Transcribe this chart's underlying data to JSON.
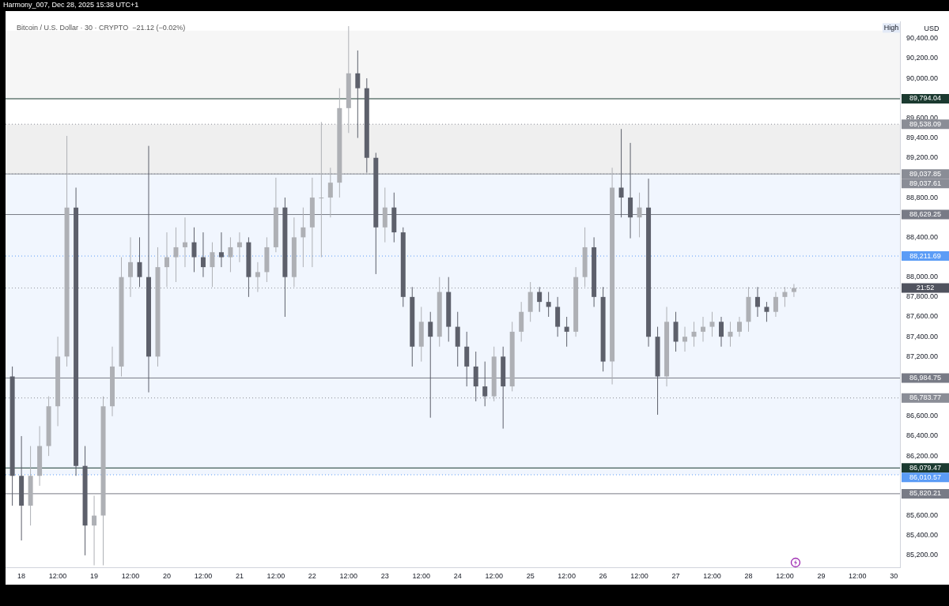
{
  "chart_data": {
    "type": "candlestick",
    "title": "Bitcoin / U.S. Dollar · 30 · CRYPTO  −21.12 (−0.02%)",
    "subtitle": "Harmony_007, Dec 28, 2025 15:38 UTC+1",
    "ylabel": "USD",
    "colors": [
      "#5d606b",
      "#5d606b",
      "#aeb0b5",
      "#aeb0b5",
      "#aeb0b5",
      "#aeb0b5",
      "#aeb0b5",
      "#5d606b",
      "#5d606b",
      "#aeb0b5",
      "#aeb0b5",
      "#aeb0b5",
      "#aeb0b5",
      "#aeb0b5",
      "#5d606b",
      "#5d606b",
      "#aeb0b5",
      "#aeb0b5",
      "#aeb0b5",
      "#aeb0b5",
      "#5d606b",
      "#5d606b",
      "#aeb0b5",
      "#5d606b",
      "#aeb0b5",
      "#aeb0b5",
      "#5d606b",
      "#aeb0b5",
      "#aeb0b5",
      "#aeb0b5",
      "#5d606b",
      "#aeb0b5",
      "#aeb0b5",
      "#aeb0b5",
      "#aeb0b5",
      "#aeb0b5",
      "#aeb0b5",
      "#aeb0b5",
      "#5d606b",
      "#5d606b",
      "#5d606b",
      "#aeb0b5",
      "#5d606b",
      "#5d606b",
      "#5d606b",
      "#aeb0b5",
      "#5d606b",
      "#aeb0b5",
      "#5d606b",
      "#5d606b",
      "#5d606b",
      "#5d606b",
      "#5d606b",
      "#aeb0b5",
      "#5d606b",
      "#aeb0b5",
      "#aeb0b5",
      "#aeb0b5",
      "#5d606b",
      "#5d606b",
      "#5d606b",
      "#5d606b",
      "#aeb0b5",
      "#aeb0b5",
      "#5d606b",
      "#5d606b",
      "#aeb0b5",
      "#5d606b",
      "#5d606b",
      "#aeb0b5",
      "#5d606b",
      "#5d606b",
      "#aeb0b5",
      "#5d606b",
      "#aeb0b5",
      "#aeb0b5",
      "#aeb0b5",
      "#aeb0b5",
      "#5d606b",
      "#aeb0b5",
      "#aeb0b5",
      "#aeb0b5",
      "#5d606b",
      "#5d606b",
      "#aeb0b5",
      "#aeb0b5",
      "#aeb0b5"
    ],
    "x": [
      "2025-12-17T21:00",
      "2025-12-18T00:00",
      "2025-12-18T03:00",
      "2025-12-18T06:00",
      "2025-12-18T09:00",
      "2025-12-18T12:00",
      "2025-12-18T15:00",
      "2025-12-18T18:00",
      "2025-12-18T21:00",
      "2025-12-19T00:00",
      "2025-12-19T03:00",
      "2025-12-19T06:00",
      "2025-12-19T09:00",
      "2025-12-19T12:00",
      "2025-12-19T15:00",
      "2025-12-19T18:00",
      "2025-12-19T21:00",
      "2025-12-20T00:00",
      "2025-12-20T03:00",
      "2025-12-20T06:00",
      "2025-12-20T09:00",
      "2025-12-20T12:00",
      "2025-12-20T15:00",
      "2025-12-20T18:00",
      "2025-12-20T21:00",
      "2025-12-21T00:00",
      "2025-12-21T03:00",
      "2025-12-21T06:00",
      "2025-12-21T09:00",
      "2025-12-21T12:00",
      "2025-12-21T15:00",
      "2025-12-21T18:00",
      "2025-12-21T21:00",
      "2025-12-22T00:00",
      "2025-12-22T03:00",
      "2025-12-22T06:00",
      "2025-12-22T09:00",
      "2025-12-22T12:00",
      "2025-12-22T15:00",
      "2025-12-22T18:00",
      "2025-12-22T21:00",
      "2025-12-23T00:00",
      "2025-12-23T03:00",
      "2025-12-23T06:00",
      "2025-12-23T09:00",
      "2025-12-23T12:00",
      "2025-12-23T15:00",
      "2025-12-23T18:00",
      "2025-12-23T21:00",
      "2025-12-24T00:00",
      "2025-12-24T03:00",
      "2025-12-24T06:00",
      "2025-12-24T09:00",
      "2025-12-24T12:00",
      "2025-12-24T15:00",
      "2025-12-24T18:00",
      "2025-12-24T21:00",
      "2025-12-25T00:00",
      "2025-12-25T03:00",
      "2025-12-25T06:00",
      "2025-12-25T09:00",
      "2025-12-25T12:00",
      "2025-12-25T15:00",
      "2025-12-25T18:00",
      "2025-12-25T21:00",
      "2025-12-26T00:00",
      "2025-12-26T03:00",
      "2025-12-26T06:00",
      "2025-12-26T09:00",
      "2025-12-26T12:00",
      "2025-12-26T15:00",
      "2025-12-26T18:00",
      "2025-12-26T21:00",
      "2025-12-27T00:00",
      "2025-12-27T03:00",
      "2025-12-27T06:00",
      "2025-12-27T09:00",
      "2025-12-27T12:00",
      "2025-12-27T15:00",
      "2025-12-27T18:00",
      "2025-12-27T21:00",
      "2025-12-28T00:00",
      "2025-12-28T03:00",
      "2025-12-28T06:00",
      "2025-12-28T09:00",
      "2025-12-28T12:00",
      "2025-12-28T15:00"
    ],
    "ohlc": [
      [
        87000,
        87100,
        85700,
        86000
      ],
      [
        86000,
        86400,
        85350,
        85700
      ],
      [
        85700,
        86300,
        85500,
        86000
      ],
      [
        86000,
        86500,
        85900,
        86300
      ],
      [
        86300,
        86800,
        86200,
        86700
      ],
      [
        86700,
        87400,
        86500,
        87200
      ],
      [
        87200,
        89420,
        87100,
        88700
      ],
      [
        88700,
        88900,
        86000,
        86100
      ],
      [
        86100,
        86300,
        85200,
        85500
      ],
      [
        85500,
        85800,
        85100,
        85600
      ],
      [
        85600,
        86800,
        85100,
        86700
      ],
      [
        86700,
        87300,
        86600,
        87100
      ],
      [
        87100,
        88200,
        87000,
        88000
      ],
      [
        88000,
        88400,
        87800,
        88150
      ],
      [
        88150,
        88400,
        87900,
        88000
      ],
      [
        88000,
        89320,
        86840,
        87200
      ],
      [
        87200,
        88300,
        87100,
        88100
      ],
      [
        88100,
        88450,
        87900,
        88200
      ],
      [
        88200,
        88500,
        87950,
        88300
      ],
      [
        88300,
        88600,
        88100,
        88350
      ],
      [
        88350,
        88500,
        88050,
        88200
      ],
      [
        88200,
        88450,
        88000,
        88100
      ],
      [
        88100,
        88350,
        87900,
        88250
      ],
      [
        88250,
        88450,
        88100,
        88200
      ],
      [
        88200,
        88400,
        88050,
        88300
      ],
      [
        88300,
        88450,
        88150,
        88350
      ],
      [
        88350,
        88400,
        87800,
        88000
      ],
      [
        88000,
        88150,
        87850,
        88050
      ],
      [
        88050,
        88400,
        87950,
        88300
      ],
      [
        88300,
        89000,
        88250,
        88700
      ],
      [
        88700,
        88800,
        87600,
        88000
      ],
      [
        88000,
        88600,
        87900,
        88400
      ],
      [
        88400,
        88700,
        88100,
        88500
      ],
      [
        88500,
        89000,
        88100,
        88800
      ],
      [
        88800,
        89560,
        88200,
        88800
      ],
      [
        88800,
        89100,
        88600,
        88950
      ],
      [
        88950,
        89900,
        88800,
        89700
      ],
      [
        89700,
        90525,
        89450,
        90050
      ],
      [
        90050,
        90280,
        89400,
        89900
      ],
      [
        89900,
        90000,
        89050,
        89200
      ],
      [
        89200,
        89250,
        88030,
        88500
      ],
      [
        88500,
        88900,
        88350,
        88700
      ],
      [
        88700,
        88850,
        88350,
        88450
      ],
      [
        88450,
        88500,
        87700,
        87800
      ],
      [
        87800,
        87900,
        87100,
        87300
      ],
      [
        87300,
        87700,
        87150,
        87550
      ],
      [
        87550,
        87650,
        86585,
        87400
      ],
      [
        87400,
        88000,
        87300,
        87850
      ],
      [
        87850,
        88000,
        87350,
        87500
      ],
      [
        87500,
        87650,
        87100,
        87300
      ],
      [
        87300,
        87450,
        86900,
        87100
      ],
      [
        87100,
        87250,
        86750,
        86900
      ],
      [
        86900,
        87150,
        86700,
        86800
      ],
      [
        86800,
        87300,
        86750,
        87200
      ],
      [
        87200,
        87300,
        86475,
        86900
      ],
      [
        86900,
        87550,
        86850,
        87450
      ],
      [
        87450,
        87750,
        87350,
        87650
      ],
      [
        87650,
        87950,
        87550,
        87850
      ],
      [
        87850,
        87900,
        87650,
        87750
      ],
      [
        87750,
        87850,
        87600,
        87700
      ],
      [
        87700,
        87800,
        87400,
        87500
      ],
      [
        87500,
        87600,
        87300,
        87450
      ],
      [
        87450,
        88100,
        87400,
        88000
      ],
      [
        88000,
        88500,
        87900,
        88300
      ],
      [
        88300,
        88400,
        87700,
        87800
      ],
      [
        87800,
        87900,
        87050,
        87150
      ],
      [
        87150,
        89100,
        86920,
        88900
      ],
      [
        88900,
        89490,
        88600,
        88800
      ],
      [
        88800,
        89350,
        88390,
        88600
      ],
      [
        88600,
        88850,
        88400,
        88700
      ],
      [
        88700,
        88990,
        87300,
        87400
      ],
      [
        87400,
        87500,
        86615,
        87000
      ],
      [
        87000,
        87700,
        86900,
        87550
      ],
      [
        87550,
        87650,
        87250,
        87350
      ],
      [
        87350,
        87500,
        87250,
        87400
      ],
      [
        87400,
        87550,
        87300,
        87450
      ],
      [
        87450,
        87600,
        87350,
        87500
      ],
      [
        87500,
        87650,
        87400,
        87550
      ],
      [
        87550,
        87600,
        87300,
        87400
      ],
      [
        87400,
        87550,
        87300,
        87450
      ],
      [
        87450,
        87600,
        87400,
        87550
      ],
      [
        87550,
        87900,
        87450,
        87800
      ],
      [
        87800,
        87900,
        87600,
        87700
      ],
      [
        87700,
        87750,
        87550,
        87650
      ],
      [
        87650,
        87850,
        87600,
        87800
      ],
      [
        87800,
        87900,
        87700,
        87850
      ],
      [
        87850,
        87930,
        87800,
        87890
      ]
    ],
    "xlim": [
      "2025-12-17T18:45",
      "2025-12-30T02:00"
    ],
    "xticks": [
      {
        "value": "2025-12-18",
        "label": "18"
      },
      {
        "value": "2025-12-18T12:00",
        "label": "12:00"
      },
      {
        "value": "2025-12-19",
        "label": "19"
      },
      {
        "value": "2025-12-19T12:00",
        "label": "12:00"
      },
      {
        "value": "2025-12-20",
        "label": "20"
      },
      {
        "value": "2025-12-20T12:00",
        "label": "12:00"
      },
      {
        "value": "2025-12-21",
        "label": "21"
      },
      {
        "value": "2025-12-21T12:00",
        "label": "12:00"
      },
      {
        "value": "2025-12-22",
        "label": "22"
      },
      {
        "value": "2025-12-22T12:00",
        "label": "12:00"
      },
      {
        "value": "2025-12-23",
        "label": "23"
      },
      {
        "value": "2025-12-23T12:00",
        "label": "12:00"
      },
      {
        "value": "2025-12-24",
        "label": "24"
      },
      {
        "value": "2025-12-24T12:00",
        "label": "12:00"
      },
      {
        "value": "2025-12-25",
        "label": "25"
      },
      {
        "value": "2025-12-25T12:00",
        "label": "12:00"
      },
      {
        "value": "2025-12-26",
        "label": "26"
      },
      {
        "value": "2025-12-26T12:00",
        "label": "12:00"
      },
      {
        "value": "2025-12-27",
        "label": "27"
      },
      {
        "value": "2025-12-27T12:00",
        "label": "12:00"
      },
      {
        "value": "2025-12-28",
        "label": "28"
      },
      {
        "value": "2025-12-28T12:00",
        "label": "12:00"
      },
      {
        "value": "2025-12-29",
        "label": "29"
      },
      {
        "value": "2025-12-29T12:00",
        "label": "12:00"
      },
      {
        "value": "2025-12-30",
        "label": "30"
      }
    ],
    "ylim": [
      85080,
      90570
    ],
    "yticks": [
      {
        "value": 85200,
        "label": "85,200.00"
      },
      {
        "value": 85400,
        "label": "85,400.00"
      },
      {
        "value": 85600,
        "label": "85,600.00"
      },
      {
        "value": 86200,
        "label": "86,200.00"
      },
      {
        "value": 86400,
        "label": "86,400.00"
      },
      {
        "value": 86600,
        "label": "86,600.00"
      },
      {
        "value": 87200,
        "label": "87,200.00"
      },
      {
        "value": 87400,
        "label": "87,400.00"
      },
      {
        "value": 87600,
        "label": "87,600.00"
      },
      {
        "value": 87800,
        "label": "87,800.00"
      },
      {
        "value": 88000,
        "label": "88,000.00"
      },
      {
        "value": 88400,
        "label": "88,400.00"
      },
      {
        "value": 88800,
        "label": "88,800.00"
      },
      {
        "value": 89200,
        "label": "89,200.00"
      },
      {
        "value": 89400,
        "label": "89,400.00"
      },
      {
        "value": 89600,
        "label": "89,600.00"
      },
      {
        "value": 90000,
        "label": "90,000.00"
      },
      {
        "value": 90200,
        "label": "90,200.00"
      },
      {
        "value": 90400,
        "label": "90,400.00"
      }
    ],
    "ref_lines": [
      {
        "axis": "y",
        "value": 89794.04,
        "label": "89,794.04",
        "color": "#1b3a30"
      },
      {
        "axis": "y",
        "value": 88629.25,
        "label": "88,629.25",
        "color": "#787b86"
      },
      {
        "axis": "y",
        "value": 86984.75,
        "label": "86,984.75",
        "color": "#787b86"
      },
      {
        "axis": "y",
        "value": 86079.47,
        "label": "86,079.47",
        "color": "#1b3a30"
      },
      {
        "axis": "y",
        "value": 85820.21,
        "label": "85,820.21",
        "color": "#787b86"
      },
      {
        "axis": "y",
        "value": 89538.09,
        "label": "89,538.09",
        "color": "#8a8d96",
        "line_style": "dotted"
      },
      {
        "axis": "y",
        "value": 89037.85,
        "label": "89,037.85",
        "color": "#8a8d96",
        "line_style": "dotted"
      },
      {
        "axis": "y",
        "value": 89037.61,
        "label": "89,037.61",
        "color": "#8a8d96"
      },
      {
        "axis": "y",
        "value": 88211.69,
        "label": "88,211.69",
        "color": "#5b9cf6",
        "line_style": "dotted"
      },
      {
        "axis": "y",
        "value": 87890,
        "color": "#9598a1",
        "line_style": "dotted"
      },
      {
        "axis": "y",
        "value": 86783.77,
        "label": "86,783.77",
        "color": "#8a8d96",
        "line_style": "dotted"
      },
      {
        "axis": "y",
        "value": 86010.57,
        "label": "86,010.57",
        "color": "#5b9cf6",
        "line_style": "dotted"
      }
    ],
    "bands": [
      {
        "axis": "y",
        "from": 89794.04,
        "to": 90480,
        "color": "#f6f6f6"
      },
      {
        "axis": "y",
        "from": 89037.61,
        "to": 89538.09,
        "color": "#efefef"
      },
      {
        "axis": "y",
        "from": 86010.57,
        "to": 89037.85,
        "color": "#f1f6fe"
      }
    ],
    "annotations": [
      "High",
      "21:52"
    ]
  }
}
